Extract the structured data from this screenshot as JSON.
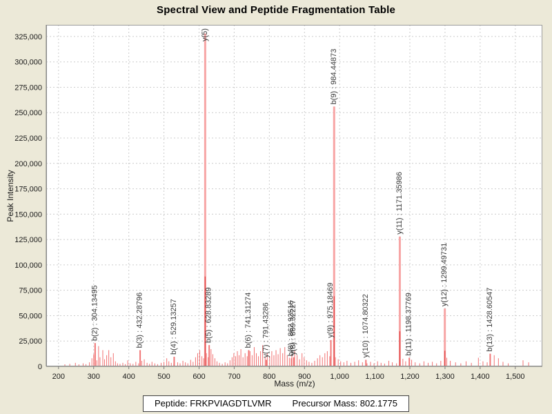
{
  "title": "Spectral View and Peptide Fragmentation Table",
  "footer": {
    "peptide_label": "Peptide: FRKPVIAGDTLVMR",
    "precursor_mass_label": "Precursor Mass: 802.1775"
  },
  "chart_data": {
    "type": "bar",
    "title": "Spectral View and Peptide Fragmentation Table",
    "xlabel": "Mass (m/z)",
    "ylabel": "Peak Intensity",
    "xlim": [
      165,
      1577
    ],
    "ylim": [
      0,
      336500
    ],
    "grid": true,
    "x_ticks": [
      200,
      300,
      400,
      500,
      600,
      700,
      800,
      900,
      1000,
      1100,
      1200,
      1300,
      1400,
      1500
    ],
    "y_ticks": [
      0,
      25000,
      50000,
      75000,
      100000,
      125000,
      150000,
      175000,
      200000,
      225000,
      250000,
      275000,
      300000,
      325000
    ],
    "colors": {
      "background": "#ece9d8",
      "plot_background": "#ffffff",
      "grid": "#cccccc",
      "axis": "#7d7d7d",
      "border": "#9b9b9b",
      "major_peak": "#f7a5a5",
      "labeled_peak": "#f17676",
      "noise_peak": "#f17070",
      "peak_accent": "#e34f4f",
      "label_text": "#3b3b3b",
      "tick_text": "#1a1a1a"
    },
    "labeled_peaks": [
      {
        "label": "b(2) : 304.13495",
        "mz": 304.13,
        "intensity": 23000
      },
      {
        "label": "b(3) : 432.28796",
        "mz": 432.29,
        "intensity": 16000
      },
      {
        "label": "b(4) : 529.13257",
        "mz": 529.13,
        "intensity": 9500
      },
      {
        "label": "y(5) :",
        "mz": 617.4,
        "intensity": 328000,
        "label_bottom": 60
      },
      {
        "label": "b(5) : 628.83289",
        "mz": 628.83,
        "intensity": 21000
      },
      {
        "label": "b(6) : 741.31274",
        "mz": 741.31,
        "intensity": 16000
      },
      {
        "label": "y(7) : 791.43286",
        "mz": 791.43,
        "intensity": 6500
      },
      {
        "label": "b(8) : 862.92516",
        "mz": 862.93,
        "intensity": 8000
      },
      {
        "label": "y(8) : 869.32227",
        "mz": 869.32,
        "intensity": 9000
      },
      {
        "label": "y(9) : 975.18469",
        "mz": 975.18,
        "intensity": 26000
      },
      {
        "label": "b(9) : 984.44873",
        "mz": 984.45,
        "intensity": 256000
      },
      {
        "label": "y(10) : 1074.80322",
        "mz": 1074.8,
        "intensity": 6500
      },
      {
        "label": "y(11) : 1171.35986",
        "mz": 1171.36,
        "intensity": 128000
      },
      {
        "label": "b(11) : 1198.37769",
        "mz": 1198.38,
        "intensity": 8500
      },
      {
        "label": "y(12) : 1299.49731",
        "mz": 1299.5,
        "intensity": 57000
      },
      {
        "label": "b(13) : 1428.60547",
        "mz": 1428.61,
        "intensity": 12500
      }
    ],
    "noise_peaks": [
      [
        218,
        2000
      ],
      [
        232,
        2500
      ],
      [
        248,
        3500
      ],
      [
        258,
        2000
      ],
      [
        270,
        3000
      ],
      [
        278,
        2200
      ],
      [
        288,
        4000
      ],
      [
        295,
        8000
      ],
      [
        300,
        12000
      ],
      [
        309,
        6000
      ],
      [
        314,
        20000
      ],
      [
        318,
        9000
      ],
      [
        326,
        16000
      ],
      [
        331,
        7000
      ],
      [
        337,
        11000
      ],
      [
        343,
        16000
      ],
      [
        349,
        9000
      ],
      [
        356,
        13000
      ],
      [
        362,
        5000
      ],
      [
        368,
        3000
      ],
      [
        375,
        2500
      ],
      [
        383,
        3500
      ],
      [
        390,
        2200
      ],
      [
        397,
        6000
      ],
      [
        404,
        3000
      ],
      [
        412,
        2500
      ],
      [
        420,
        4500
      ],
      [
        428,
        3000
      ],
      [
        437,
        5500
      ],
      [
        444,
        7000
      ],
      [
        452,
        3500
      ],
      [
        459,
        2500
      ],
      [
        466,
        4500
      ],
      [
        474,
        3000
      ],
      [
        482,
        2200
      ],
      [
        492,
        3500
      ],
      [
        500,
        4500
      ],
      [
        508,
        8000
      ],
      [
        514,
        5000
      ],
      [
        521,
        3500
      ],
      [
        528,
        2500
      ],
      [
        539,
        4000
      ],
      [
        546,
        3000
      ],
      [
        554,
        5500
      ],
      [
        561,
        4000
      ],
      [
        568,
        3000
      ],
      [
        576,
        6500
      ],
      [
        583,
        4500
      ],
      [
        590,
        9000
      ],
      [
        596,
        13000
      ],
      [
        602,
        16000
      ],
      [
        608,
        10000
      ],
      [
        613,
        8000
      ],
      [
        621,
        13000
      ],
      [
        626,
        9000
      ],
      [
        634,
        17000
      ],
      [
        639,
        12000
      ],
      [
        645,
        8000
      ],
      [
        651,
        5000
      ],
      [
        658,
        3500
      ],
      [
        666,
        2500
      ],
      [
        674,
        4000
      ],
      [
        681,
        3000
      ],
      [
        688,
        6000
      ],
      [
        694,
        9000
      ],
      [
        699,
        13000
      ],
      [
        704,
        10000
      ],
      [
        709,
        15000
      ],
      [
        714,
        11000
      ],
      [
        719,
        17000
      ],
      [
        725,
        9000
      ],
      [
        731,
        13000
      ],
      [
        737,
        10000
      ],
      [
        745,
        15000
      ],
      [
        751,
        11000
      ],
      [
        757,
        19000
      ],
      [
        763,
        13000
      ],
      [
        769,
        10000
      ],
      [
        775,
        15000
      ],
      [
        781,
        21000
      ],
      [
        788,
        9000
      ],
      [
        794,
        13000
      ],
      [
        801,
        10000
      ],
      [
        807,
        15000
      ],
      [
        813,
        11000
      ],
      [
        819,
        16000
      ],
      [
        825,
        12000
      ],
      [
        831,
        18000
      ],
      [
        838,
        13000
      ],
      [
        844,
        19000
      ],
      [
        851,
        11000
      ],
      [
        857,
        8500
      ],
      [
        864,
        12000
      ],
      [
        872,
        15000
      ],
      [
        879,
        11000
      ],
      [
        886,
        7000
      ],
      [
        893,
        13000
      ],
      [
        899,
        9000
      ],
      [
        906,
        6000
      ],
      [
        913,
        4500
      ],
      [
        921,
        3500
      ],
      [
        929,
        5500
      ],
      [
        937,
        8000
      ],
      [
        944,
        11000
      ],
      [
        951,
        9000
      ],
      [
        958,
        13000
      ],
      [
        965,
        15000
      ],
      [
        972,
        10000
      ],
      [
        988,
        9000
      ],
      [
        996,
        7000
      ],
      [
        1003,
        5000
      ],
      [
        1012,
        4000
      ],
      [
        1021,
        5500
      ],
      [
        1032,
        3500
      ],
      [
        1043,
        4500
      ],
      [
        1054,
        6000
      ],
      [
        1065,
        4000
      ],
      [
        1078,
        3000
      ],
      [
        1088,
        4500
      ],
      [
        1098,
        3000
      ],
      [
        1108,
        5000
      ],
      [
        1118,
        3500
      ],
      [
        1128,
        2800
      ],
      [
        1140,
        5500
      ],
      [
        1150,
        4000
      ],
      [
        1162,
        3000
      ],
      [
        1180,
        7500
      ],
      [
        1188,
        5000
      ],
      [
        1205,
        6500
      ],
      [
        1215,
        4000
      ],
      [
        1228,
        3000
      ],
      [
        1240,
        5000
      ],
      [
        1252,
        3500
      ],
      [
        1264,
        4500
      ],
      [
        1276,
        3000
      ],
      [
        1288,
        5500
      ],
      [
        1305,
        8500
      ],
      [
        1315,
        5500
      ],
      [
        1330,
        4000
      ],
      [
        1345,
        3000
      ],
      [
        1360,
        5000
      ],
      [
        1375,
        3500
      ],
      [
        1395,
        8500
      ],
      [
        1408,
        5000
      ],
      [
        1420,
        4000
      ],
      [
        1440,
        11000
      ],
      [
        1452,
        8000
      ],
      [
        1465,
        4500
      ],
      [
        1480,
        3000
      ],
      [
        1522,
        6000
      ],
      [
        1538,
        4000
      ]
    ]
  }
}
